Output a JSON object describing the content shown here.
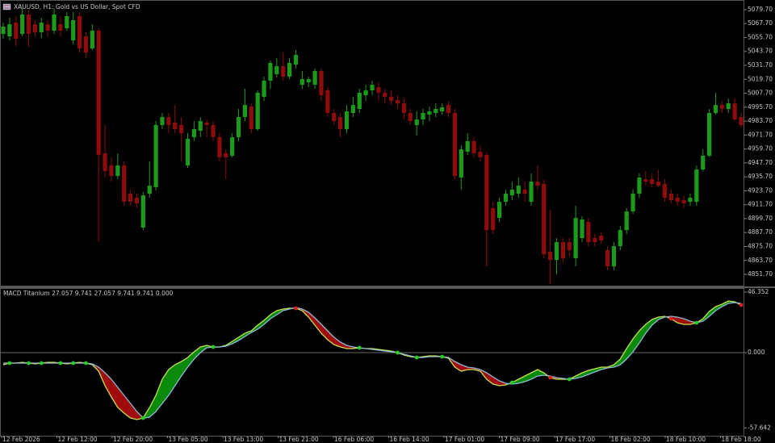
{
  "chart_data": [
    {
      "type": "candlestick",
      "title": "XAUUSD, H1:  Gold vs US Dollar, Spot CFD",
      "up_color": "#1c9a1c",
      "down_color": "#8e0c0c",
      "open": [
        5058.8,
        5056.7,
        5068.5,
        5058.8,
        5075.5,
        5067.1,
        5060.2,
        5067.1,
        5061.6,
        5067.1,
        5063.7,
        5053.2,
        5074.1,
        5056.7,
        5046.3,
        5061.6,
        4956,
        4945.5,
        4936.5,
        4945.5,
        4921.2,
        4917.7,
        4892,
        4921.2,
        4926.8,
        4980.3,
        4987.2,
        4982.4,
        4980.3,
        4945.5,
        4969.8,
        4975.4,
        4982.4,
        4980.3,
        4969.8,
        4956,
        4953.9,
        4969.8,
        4987.2,
        4996.3,
        4976.8,
        5004.6,
        5018.5,
        5024.1,
        5031,
        5022,
        5032.4,
        5015,
        5017.1,
        5015,
        5026.8,
        5010.2,
        4990.7,
        4987.2,
        4976.8,
        4990.7,
        4994.2,
        5006,
        5010.2,
        5012.9,
        5008.1,
        5004.6,
        5001.8,
        4999,
        4990.7,
        4980.3,
        4985.1,
        4989.3,
        4990.7,
        4992.1,
        4997.6,
        4990.7,
        4935.1,
        4957.3,
        4966.4,
        4957.3,
        4954.6,
        4908.7,
        4900.3,
        4914.2,
        4919.8,
        4921.2,
        4924.7,
        4914.2,
        4931.6,
        4929.5,
        4871.2,
        4864.2,
        4879.5,
        4879.5,
        4865.6,
        4883,
        4896.9,
        4883,
        4885.1,
        4872.5,
        4858.6,
        4876,
        4889.9,
        4905.9,
        4921.2,
        4933.7,
        4933.7,
        4931.6,
        4929.5,
        4921.2,
        4917.7,
        4915.6,
        4914.2,
        4914.2,
        4942,
        4953.9,
        4990.7,
        4997.6,
        4994.2,
        4999,
        4987.2
      ],
      "high": [
        5068.5,
        5072.7,
        5074.1,
        5081,
        5079.7,
        5070.6,
        5072.7,
        5070.6,
        5081,
        5074.1,
        5077.6,
        5077.6,
        5077.6,
        5060.2,
        5067.1,
        5063.7,
        4980.3,
        4952.5,
        4956,
        4949,
        4924.7,
        4921.2,
        4922.6,
        4949,
        4983.7,
        4990.7,
        4990.7,
        4997.6,
        4987.2,
        4973.3,
        4983.7,
        4987.2,
        4985.1,
        4983.7,
        4973.3,
        4959.4,
        4973.3,
        4994.2,
        5011.5,
        4999,
        5010.2,
        5022,
        5035.9,
        5038,
        5042.8,
        5038,
        5044.9,
        5026.8,
        5022,
        5028.9,
        5028.9,
        5012.9,
        4994.2,
        4990.7,
        4997.6,
        5004.6,
        5011.5,
        5015,
        5018.5,
        5017.1,
        5011.5,
        5010.2,
        5006,
        5003.2,
        4994.2,
        4992.1,
        4994.2,
        4996.3,
        4999,
        4999,
        5001.1,
        4994.2,
        4962.9,
        4973.3,
        4969.8,
        4962.9,
        4957.3,
        4914.2,
        4917.7,
        4924.7,
        4931.6,
        4935.1,
        4931.6,
        4938.6,
        4945.5,
        4933.7,
        4907.3,
        4883,
        4883,
        4883,
        4910.8,
        4901.7,
        4900.3,
        4886.4,
        4887.8,
        4876,
        4879.5,
        4893.4,
        4908.7,
        4924.7,
        4938.6,
        4940.7,
        4938.6,
        4942,
        4933.7,
        4924.7,
        4921.2,
        4919.8,
        4921.2,
        4945.5,
        4959.4,
        4994.2,
        5008.1,
        5001.1,
        5003.2,
        5003.2,
        4990.7
      ],
      "low": [
        5054.6,
        5053.2,
        5048.4,
        5056.7,
        5047.7,
        5056.7,
        5055.3,
        5056.7,
        5058.8,
        5056.7,
        5061.6,
        5049.8,
        5042.8,
        5038,
        5044.9,
        4879.5,
        4935.1,
        4931.6,
        4933.7,
        4910.8,
        4910.8,
        4908.7,
        4889.9,
        4917.7,
        4924,
        4976.8,
        4973.3,
        4973.3,
        4949,
        4943.4,
        4966.4,
        4969.8,
        4969.8,
        4966.4,
        4949,
        4933.7,
        4952.5,
        4966.4,
        4983.7,
        4973.3,
        4975.4,
        5001.1,
        5011.5,
        5021.3,
        5018.5,
        5019.9,
        5028.9,
        5011.5,
        5012.9,
        5011.5,
        5001.1,
        4987.2,
        4980.3,
        4969.8,
        4973.3,
        4987.2,
        4990.7,
        5001.1,
        5006,
        5001.1,
        4999,
        4997.6,
        4994.2,
        4985.1,
        4980.3,
        4971.2,
        4980.3,
        4983.7,
        4987.2,
        4989.3,
        4987.2,
        4933.7,
        4924.7,
        4954.6,
        4952.5,
        4949,
        4858.6,
        4886.4,
        4896.9,
        4910.8,
        4915.6,
        4917.7,
        4914.2,
        4910.8,
        4924.7,
        4865.6,
        4843.4,
        4851.7,
        4862.1,
        4867,
        4858.6,
        4879.5,
        4876,
        4876,
        4878.1,
        4855.2,
        4855.2,
        4872.5,
        4886.4,
        4903.8,
        4917.7,
        4928.1,
        4926.8,
        4926.8,
        4914.2,
        4912.9,
        4910.8,
        4908.7,
        4910.8,
        4910.8,
        4940.7,
        4952.5,
        4989.3,
        4990.7,
        4990.7,
        4983.7,
        4978.2
      ],
      "close": [
        5065.1,
        5067.1,
        5054.6,
        5075.5,
        5058.8,
        5060.2,
        5068.5,
        5061.6,
        5075.5,
        5061.6,
        5074.1,
        5070.6,
        5046.3,
        5042.8,
        5061.6,
        4954.6,
        4940.7,
        4936.5,
        4945.5,
        4914.2,
        4914.2,
        4912.9,
        4919.8,
        4928.1,
        4980.3,
        4987.2,
        4980.3,
        4976.8,
        4973.3,
        4968.5,
        4976.8,
        4983.7,
        4980.3,
        4969.8,
        4952.5,
        4952.5,
        4969.8,
        4987.2,
        4997.6,
        4976.8,
        5008.1,
        5018.5,
        5033.8,
        5031,
        5022,
        5033.8,
        5040.7,
        5019.9,
        5019.9,
        5026.8,
        5006,
        4990.7,
        4983.7,
        4976.8,
        4992.1,
        4997.6,
        5008.1,
        5010.2,
        5015,
        5008.1,
        5004.6,
        5001.1,
        4999,
        4990.7,
        4983.7,
        4985.1,
        4990.7,
        4992.1,
        4994.2,
        4995.6,
        4990.7,
        4936.5,
        4959.4,
        4966.4,
        4956,
        4952.5,
        4889.9,
        4889.9,
        4914.2,
        4921.2,
        4924.7,
        4928.1,
        4921.2,
        4931.6,
        4928.1,
        4869.1,
        4864.2,
        4879.5,
        4865.6,
        4872.5,
        4900.3,
        4899,
        4879.5,
        4879.5,
        4880.9,
        4858.6,
        4876,
        4889.9,
        4905.9,
        4921.2,
        4935.1,
        4931.6,
        4929.5,
        4928.1,
        4917.7,
        4915.6,
        4914.2,
        4912.9,
        4917.7,
        4942,
        4953.9,
        4990.7,
        4997.6,
        4994.2,
        4999,
        4985.1,
        4980.3
      ],
      "ylim": [
        4841.3,
        5088
      ],
      "yticks": [
        {
          "value": 5079.7,
          "label": "5079.70"
        },
        {
          "value": 5067.7,
          "label": "5067.70"
        },
        {
          "value": 5055.7,
          "label": "5055.70"
        },
        {
          "value": 5043.7,
          "label": "5043.70"
        },
        {
          "value": 5031.7,
          "label": "5031.70"
        },
        {
          "value": 5019.7,
          "label": "5019.70"
        },
        {
          "value": 5007.7,
          "label": "5007.70"
        },
        {
          "value": 4995.7,
          "label": "4995.70"
        },
        {
          "value": 4983.7,
          "label": "4983.70"
        },
        {
          "value": 4971.7,
          "label": "4971.70"
        },
        {
          "value": 4959.7,
          "label": "4959.70"
        },
        {
          "value": 4947.7,
          "label": "4947.70"
        },
        {
          "value": 4935.7,
          "label": "4935.70"
        },
        {
          "value": 4923.7,
          "label": "4923.70"
        },
        {
          "value": 4911.7,
          "label": "4911.70"
        },
        {
          "value": 4899.7,
          "label": "4899.70"
        },
        {
          "value": 4887.7,
          "label": "4887.70"
        },
        {
          "value": 4875.7,
          "label": "4875.70"
        },
        {
          "value": 4863.7,
          "label": "4863.70"
        },
        {
          "value": 4851.7,
          "label": "4851.70"
        }
      ]
    },
    {
      "type": "macd",
      "title": "MACD Titanium 27.057 9.741 27.057 9.741 9.741 0.000",
      "up_fill": "#0a8a0a",
      "down_fill": "#a00c0c",
      "zero_line": true,
      "series": [
        {
          "color": "#c8e04a",
          "values": [
            -9.27,
            -8.03,
            -8.03,
            -7.42,
            -8.03,
            -8.65,
            -8.03,
            -7.42,
            -7.42,
            -8.03,
            -8.65,
            -8.03,
            -7.42,
            -8.03,
            -9.27,
            -14.21,
            -25.34,
            -33.99,
            -42.02,
            -46.35,
            -50.06,
            -51.29,
            -50.06,
            -42.02,
            -32.75,
            -20.39,
            -12.98,
            -9.27,
            -6.8,
            -3.71,
            0.62,
            4.33,
            5.56,
            4.33,
            4.33,
            5.56,
            8.65,
            11.74,
            14.83,
            16.69,
            21.01,
            24.72,
            29.05,
            32.14,
            33.37,
            33.99,
            33.99,
            32.14,
            27.19,
            21.01,
            14.83,
            9.89,
            6.18,
            4.33,
            3.09,
            3.09,
            3.71,
            3.09,
            3.09,
            2.47,
            1.85,
            1.24,
            0,
            -1.85,
            -3.09,
            -3.71,
            -3.09,
            -2.47,
            -2.47,
            -3.09,
            -4.33,
            -11.12,
            -14.21,
            -12.98,
            -12.98,
            -14.21,
            -20.39,
            -24.1,
            -25.34,
            -24.72,
            -22.87,
            -20.39,
            -17.92,
            -15.45,
            -12.98,
            -15.45,
            -19.16,
            -20.39,
            -20.39,
            -20.39,
            -17.92,
            -15.45,
            -13.6,
            -12.36,
            -11.12,
            -11.12,
            -9.27,
            -4.94,
            3.09,
            10.51,
            16.69,
            21.63,
            25.34,
            27.19,
            27.81,
            25.96,
            22.87,
            21.63,
            21.63,
            22.87,
            25.96,
            31.52,
            35.23,
            37.08,
            39.55,
            38.93,
            36.46
          ]
        },
        {
          "color": "#8fb8d8",
          "values": [
            -8.03,
            -8.03,
            -8.03,
            -8.03,
            -8.03,
            -8.03,
            -8.03,
            -8.03,
            -8.03,
            -8.03,
            -8.03,
            -8.03,
            -8.03,
            -8.03,
            -8.65,
            -11.12,
            -15.45,
            -20.39,
            -26.57,
            -32.75,
            -38.93,
            -45.11,
            -50.06,
            -49.44,
            -45.11,
            -38.93,
            -32.75,
            -25.34,
            -17.92,
            -11.12,
            -4.94,
            0,
            3.71,
            4.33,
            4.33,
            4.94,
            6.8,
            9.27,
            12.36,
            15.45,
            17.92,
            21.63,
            25.96,
            29.05,
            32.14,
            33.37,
            34.61,
            33.37,
            30.9,
            26.57,
            21.63,
            16.69,
            11.74,
            8.03,
            5.56,
            4.33,
            3.71,
            3.09,
            2.47,
            1.85,
            1.24,
            0.62,
            0,
            -1.24,
            -2.47,
            -3.71,
            -3.71,
            -3.09,
            -3.09,
            -3.09,
            -3.71,
            -6.8,
            -9.27,
            -11.12,
            -11.74,
            -12.98,
            -15.45,
            -18.54,
            -21.63,
            -23.48,
            -24.1,
            -23.48,
            -22.25,
            -20.39,
            -17.92,
            -17.3,
            -17.92,
            -19.16,
            -19.78,
            -20.39,
            -19.78,
            -18.54,
            -16.69,
            -14.83,
            -12.98,
            -11.74,
            -11.12,
            -9.27,
            -4.94,
            0.62,
            7.42,
            14.83,
            21.01,
            25.34,
            27.19,
            27.81,
            27.19,
            25.96,
            24.1,
            22.87,
            24.1,
            27.81,
            32.14,
            35.23,
            37.7,
            38.32,
            37.7
          ]
        }
      ],
      "ylim": [
        -63.65,
        48.82
      ],
      "yticks": [
        46.352,
        {
          "value": 0,
          "label": "0.000"
        },
        -57.642
      ]
    }
  ],
  "time_axis": {
    "labels": [
      "12 Feb 2026",
      "12 Feb 12:00",
      "12 Feb 20:00",
      "13 Feb 05:00",
      "13 Feb 13:00",
      "13 Feb 21:00",
      "16 Feb 06:00",
      "16 Feb 14:00",
      "17 Feb 01:00",
      "17 Feb 09:00",
      "17 Feb 17:00",
      "18 Feb 02:00",
      "18 Feb 10:00",
      "18 Feb 18:00"
    ]
  }
}
